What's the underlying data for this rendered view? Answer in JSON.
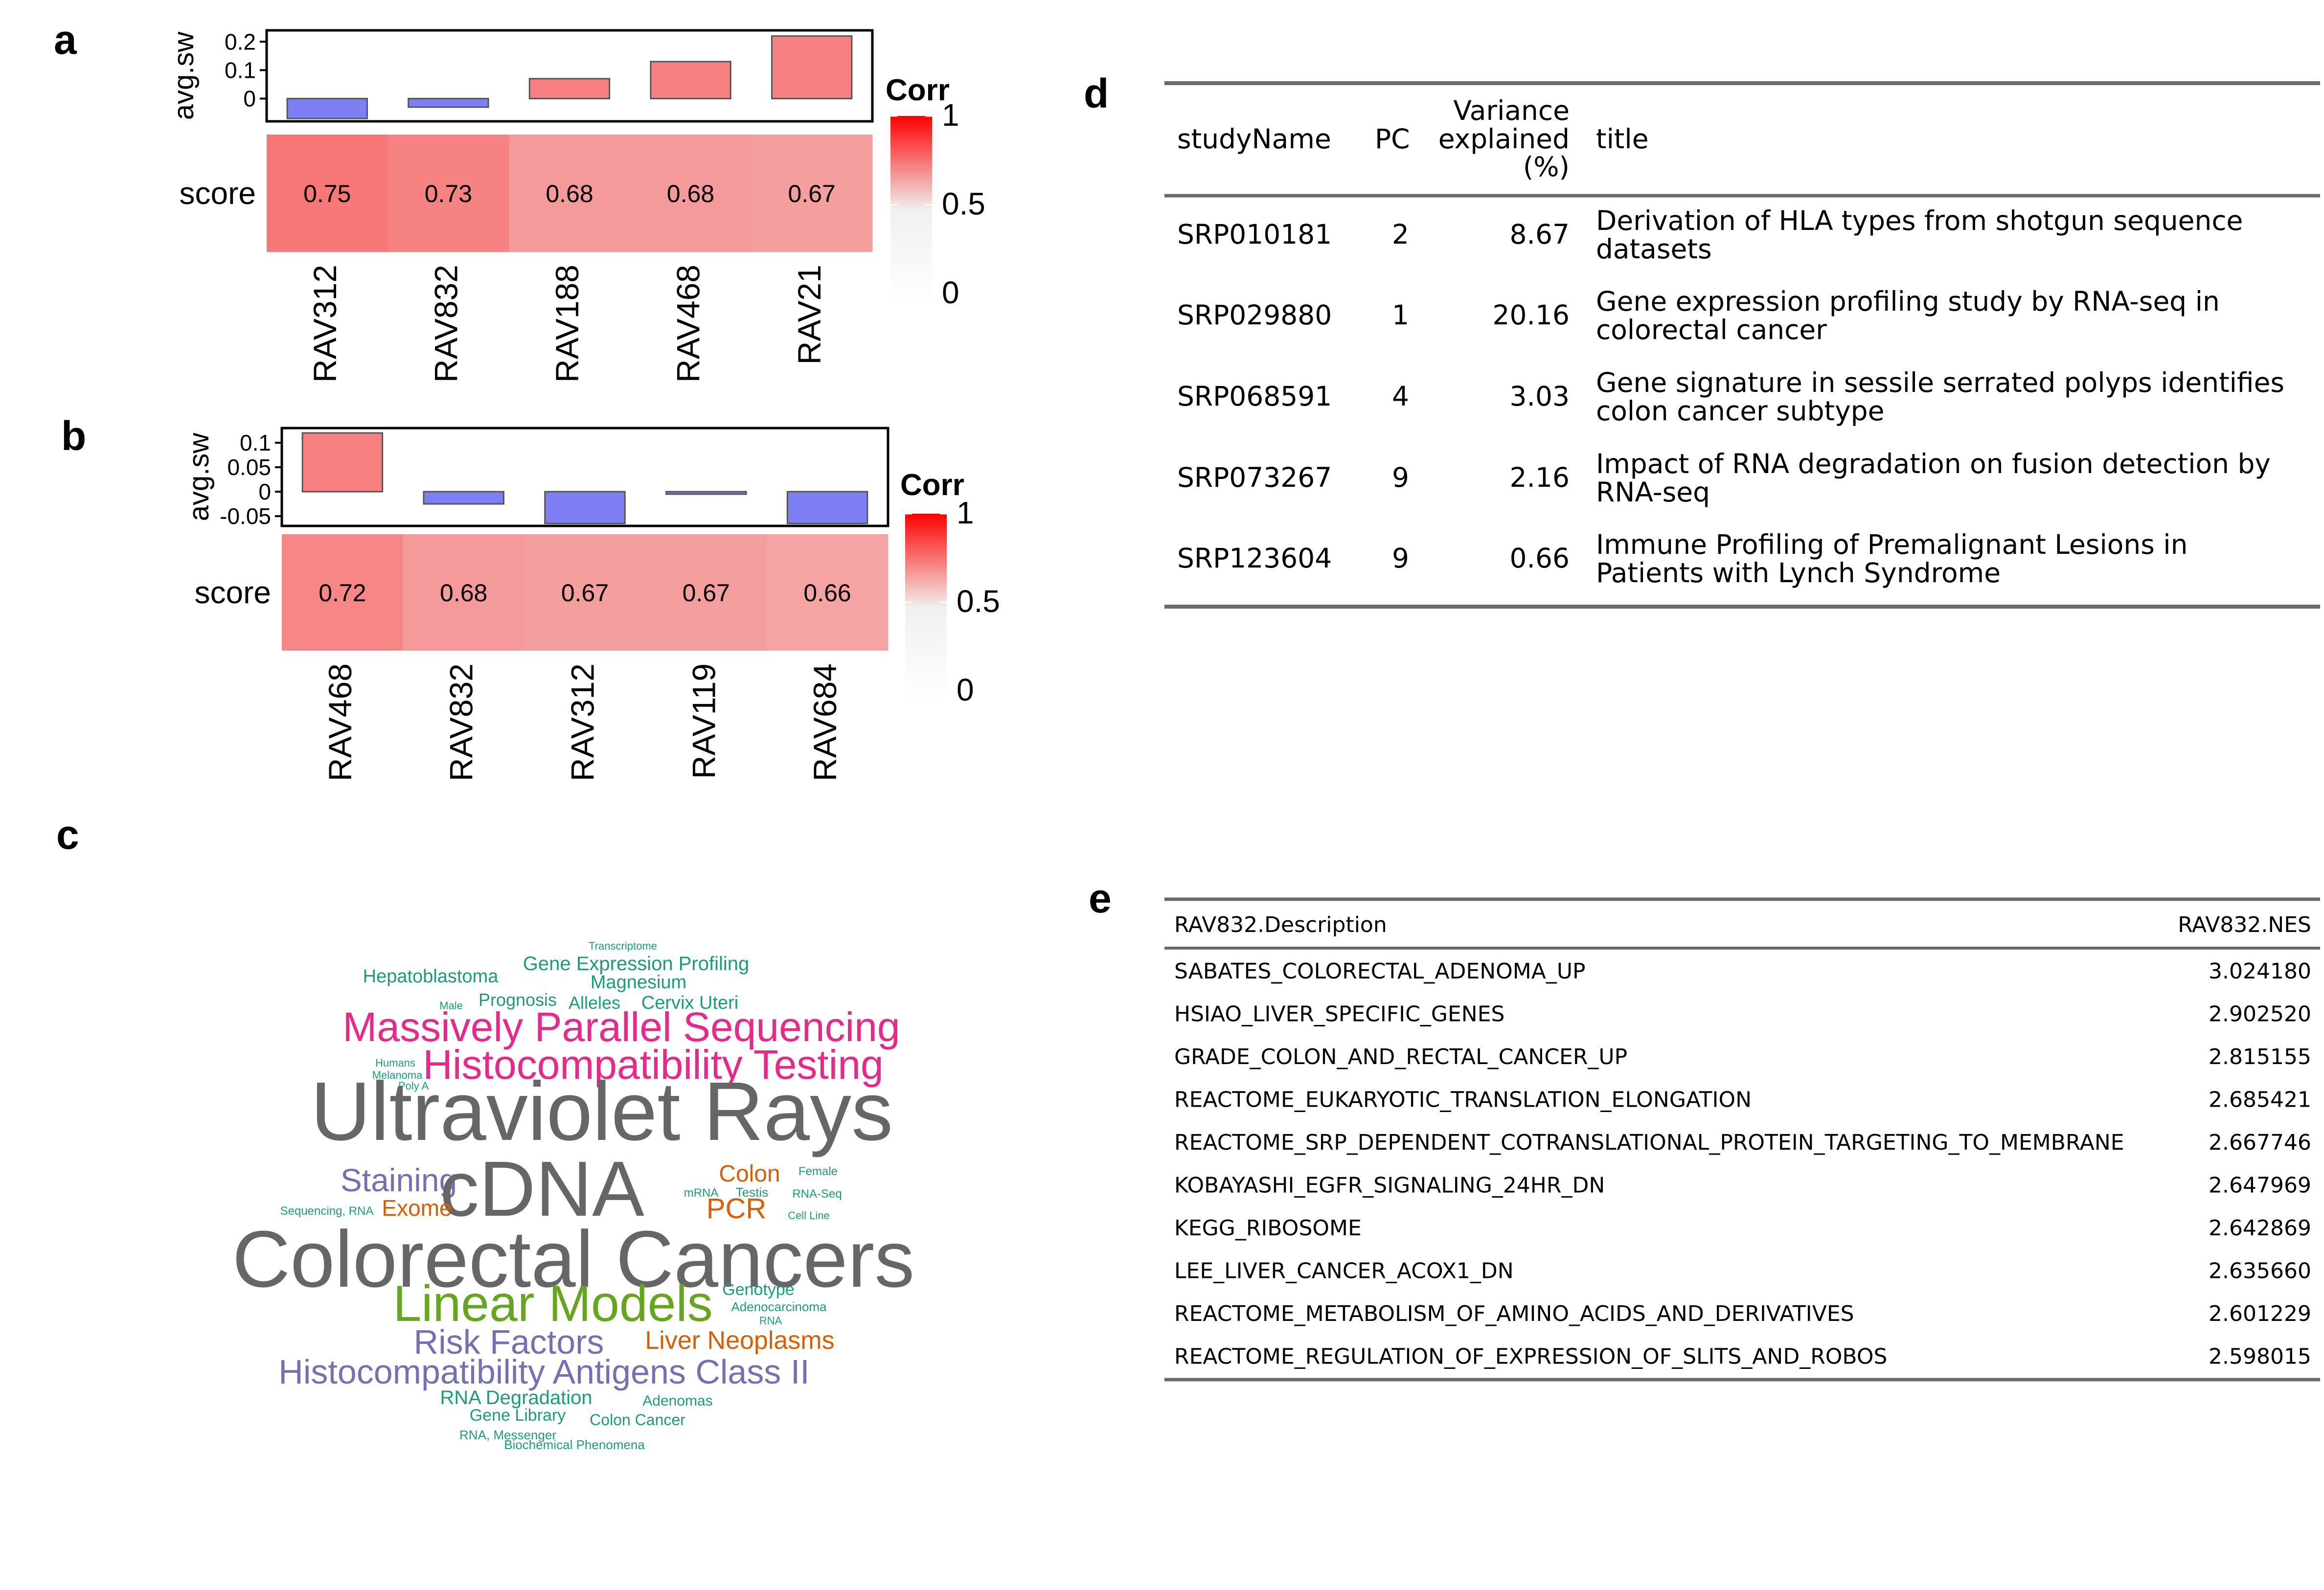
{
  "panels": {
    "a": "a",
    "b": "b",
    "c": "c",
    "d": "d",
    "e": "e"
  },
  "chart_data": [
    {
      "type": "bar",
      "panel": "a",
      "ylabel": "avg.sw",
      "ylim": [
        -0.08,
        0.24
      ],
      "yticks": [
        "0.2",
        "0.1",
        "0"
      ],
      "categories": [
        "RAV312",
        "RAV832",
        "RAV188",
        "RAV468",
        "RAV21"
      ],
      "values": [
        -0.07,
        -0.03,
        0.07,
        0.13,
        0.22
      ],
      "colors": {
        "positive": "#f87f7f",
        "negative": "#7f7ff5"
      }
    },
    {
      "type": "heatmap",
      "panel": "a",
      "row_label": "score",
      "categories": [
        "RAV312",
        "RAV832",
        "RAV188",
        "RAV468",
        "RAV21"
      ],
      "values": [
        0.75,
        0.73,
        0.68,
        0.68,
        0.67
      ],
      "labels": [
        "0.75",
        "0.73",
        "0.68",
        "0.68",
        "0.67"
      ],
      "legend": {
        "title": "Corr",
        "ticks": [
          "1",
          "0.5",
          "0"
        ]
      }
    },
    {
      "type": "bar",
      "panel": "b",
      "ylabel": "avg.sw",
      "ylim": [
        -0.07,
        0.13
      ],
      "yticks": [
        "0.1",
        "0.05",
        "0",
        "-0.05"
      ],
      "categories": [
        "RAV468",
        "RAV832",
        "RAV312",
        "RAV119",
        "RAV684"
      ],
      "values": [
        0.12,
        -0.025,
        -0.065,
        -0.005,
        -0.065
      ],
      "colors": {
        "positive": "#f87f7f",
        "negative": "#7f7ff5"
      }
    },
    {
      "type": "heatmap",
      "panel": "b",
      "row_label": "score",
      "categories": [
        "RAV468",
        "RAV832",
        "RAV312",
        "RAV119",
        "RAV684"
      ],
      "values": [
        0.72,
        0.68,
        0.67,
        0.67,
        0.66
      ],
      "labels": [
        "0.72",
        "0.68",
        "0.67",
        "0.67",
        "0.66"
      ],
      "legend": {
        "title": "Corr",
        "ticks": [
          "1",
          "0.5",
          "0"
        ]
      }
    }
  ],
  "wordcloud": [
    {
      "text": "Transcriptome",
      "color": "#1b9e77"
    },
    {
      "text": "Gene Expression Profiling",
      "color": "#1b9e77"
    },
    {
      "text": "Hepatoblastoma",
      "color": "#1b9e77"
    },
    {
      "text": "Magnesium",
      "color": "#1b9e77"
    },
    {
      "text": "Male",
      "color": "#1b9e77"
    },
    {
      "text": "Prognosis",
      "color": "#1b9e77"
    },
    {
      "text": "Alleles",
      "color": "#1b9e77"
    },
    {
      "text": "Cervix Uteri",
      "color": "#1b9e77"
    },
    {
      "text": "Massively Parallel Sequencing",
      "color": "#e7298a"
    },
    {
      "text": "Humans",
      "color": "#1b9e77"
    },
    {
      "text": "Melanoma",
      "color": "#1b9e77"
    },
    {
      "text": "Poly A",
      "color": "#1b9e77"
    },
    {
      "text": "Histocompatibility Testing",
      "color": "#e7298a"
    },
    {
      "text": "Ultraviolet Rays",
      "color": "#666666"
    },
    {
      "text": "Staining",
      "color": "#7570b3"
    },
    {
      "text": "cDNA",
      "color": "#666666"
    },
    {
      "text": "Colon",
      "color": "#d95f02"
    },
    {
      "text": "Female",
      "color": "#1b9e77"
    },
    {
      "text": "Sequencing, RNA",
      "color": "#1b9e77"
    },
    {
      "text": "Exome",
      "color": "#d95f02"
    },
    {
      "text": "mRNA",
      "color": "#1b9e77"
    },
    {
      "text": "Testis",
      "color": "#1b9e77"
    },
    {
      "text": "RNA-Seq",
      "color": "#1b9e77"
    },
    {
      "text": "PCR",
      "color": "#d95f02"
    },
    {
      "text": "Cell Line",
      "color": "#1b9e77"
    },
    {
      "text": "Colorectal Cancers",
      "color": "#666666"
    },
    {
      "text": "Genotype",
      "color": "#1b9e77"
    },
    {
      "text": "Linear Models",
      "color": "#66a61e"
    },
    {
      "text": "Adenocarcinoma",
      "color": "#1b9e77"
    },
    {
      "text": "RNA",
      "color": "#1b9e77"
    },
    {
      "text": "Risk Factors",
      "color": "#7570b3"
    },
    {
      "text": "Liver Neoplasms",
      "color": "#d95f02"
    },
    {
      "text": "Histocompatibility Antigens Class II",
      "color": "#7570b3"
    },
    {
      "text": "RNA Degradation",
      "color": "#1b9e77"
    },
    {
      "text": "Adenomas",
      "color": "#1b9e77"
    },
    {
      "text": "Gene Library",
      "color": "#1b9e77"
    },
    {
      "text": "Colon Cancer",
      "color": "#1b9e77"
    },
    {
      "text": "RNA, Messenger",
      "color": "#1b9e77"
    },
    {
      "text": "Biochemical Phenomena",
      "color": "#1b9e77"
    }
  ],
  "table_d": {
    "headers": [
      "studyName",
      "PC",
      "Variance explained (%)",
      "title"
    ],
    "header_variance_lines": [
      "Variance",
      "explained",
      "(%)"
    ],
    "rows": [
      {
        "studyName": "SRP010181",
        "PC": "2",
        "variance": "8.67",
        "title_lines": [
          "Derivation of HLA types from shotgun sequence",
          "datasets"
        ]
      },
      {
        "studyName": "SRP029880",
        "PC": "1",
        "variance": "20.16",
        "title_lines": [
          "Gene expression profiling study by RNA-seq in",
          "colorectal cancer"
        ]
      },
      {
        "studyName": "SRP068591",
        "PC": "4",
        "variance": "3.03",
        "title_lines": [
          "Gene signature in sessile serrated polyps identifies",
          "colon cancer subtype"
        ]
      },
      {
        "studyName": "SRP073267",
        "PC": "9",
        "variance": "2.16",
        "title_lines": [
          "Impact of RNA degradation on fusion detection by",
          "RNA-seq"
        ]
      },
      {
        "studyName": "SRP123604",
        "PC": "9",
        "variance": "0.66",
        "title_lines": [
          "Immune Profiling of Premalignant Lesions in",
          "Patients with Lynch Syndrome"
        ]
      }
    ]
  },
  "table_e": {
    "headers": [
      "RAV832.Description",
      "RAV832.NES"
    ],
    "rows": [
      [
        "SABATES_COLORECTAL_ADENOMA_UP",
        "3.024180"
      ],
      [
        "HSIAO_LIVER_SPECIFIC_GENES",
        "2.902520"
      ],
      [
        "GRADE_COLON_AND_RECTAL_CANCER_UP",
        "2.815155"
      ],
      [
        "REACTOME_EUKARYOTIC_TRANSLATION_ELONGATION",
        "2.685421"
      ],
      [
        "REACTOME_SRP_DEPENDENT_COTRANSLATIONAL_PROTEIN_TARGETING_TO_MEMBRANE",
        "2.667746"
      ],
      [
        "KOBAYASHI_EGFR_SIGNALING_24HR_DN",
        "2.647969"
      ],
      [
        "KEGG_RIBOSOME",
        "2.642869"
      ],
      [
        "LEE_LIVER_CANCER_ACOX1_DN",
        "2.635660"
      ],
      [
        "REACTOME_METABOLISM_OF_AMINO_ACIDS_AND_DERIVATIVES",
        "2.601229"
      ],
      [
        "REACTOME_REGULATION_OF_EXPRESSION_OF_SLITS_AND_ROBOS",
        "2.598015"
      ]
    ]
  }
}
